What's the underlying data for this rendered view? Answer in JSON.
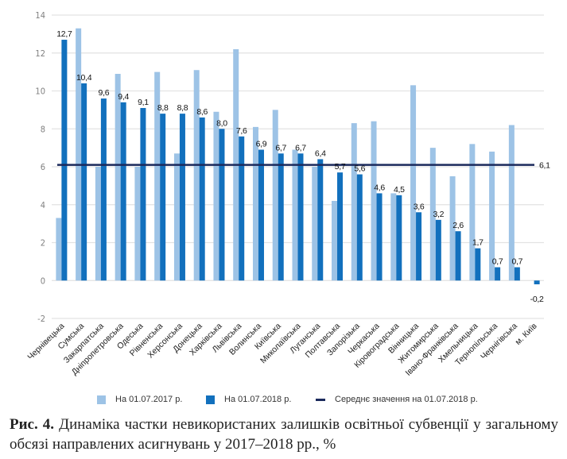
{
  "chart_data": {
    "type": "bar",
    "title": "",
    "xlabel": "",
    "ylabel": "",
    "ylim": [
      -2,
      14
    ],
    "yticks": [
      -2,
      0,
      2,
      4,
      6,
      8,
      10,
      12,
      14
    ],
    "grid": true,
    "legend_position": "bottom",
    "categories": [
      "Чернівецька",
      "Сумська",
      "Закарпатська",
      "Дніпропетровська",
      "Одеська",
      "Рівненська",
      "Херсонська",
      "Донецька",
      "Харківська",
      "Львівська",
      "Волинська",
      "Київська",
      "Миколаївська",
      "Луганська",
      "Полтавська",
      "Запорізька",
      "Черкаська",
      "Кіровоградська",
      "Вінницька",
      "Житомирська",
      "Івано-Франківська",
      "Хмельницька",
      "Тернопільська",
      "Чернігівська",
      "м. Київ"
    ],
    "series": [
      {
        "name": "На 01.07.2017 р.",
        "color": "#9dc3e6",
        "labeled": false,
        "values": [
          3.3,
          13.3,
          6.0,
          10.9,
          6.0,
          11.0,
          6.7,
          11.1,
          8.9,
          12.2,
          8.1,
          9.0,
          6.9,
          6.0,
          4.2,
          8.3,
          8.4,
          4.6,
          10.3,
          7.0,
          5.5,
          7.2,
          6.8,
          8.2,
          0
        ]
      },
      {
        "name": "На 01.07.2018 р.",
        "color": "#1270bd",
        "labeled": true,
        "values": [
          12.7,
          10.4,
          9.6,
          9.4,
          9.1,
          8.8,
          8.8,
          8.6,
          8.0,
          7.6,
          6.9,
          6.7,
          6.7,
          6.4,
          5.7,
          5.6,
          4.6,
          4.5,
          3.6,
          3.2,
          2.6,
          1.7,
          0.7,
          0.7,
          -0.2
        ]
      }
    ],
    "reference_line": {
      "name": "Середнє значення на 01.07.2018 р.",
      "value": 6.1,
      "label": "6,1",
      "color": "#1b2a5c"
    },
    "data_labels": [
      "12,7",
      "10,4",
      "9,6",
      "9,4",
      "9,1",
      "8,8",
      "8,8",
      "8,6",
      "8,0",
      "7,6",
      "6,9",
      "6,7",
      "6,7",
      "6,4",
      "5,7",
      "5,6",
      "4,6",
      "4,5",
      "3,6",
      "3,2",
      "2,6",
      "1,7",
      "0,7",
      "0,7",
      "-0,2"
    ]
  },
  "legend": {
    "items": [
      {
        "label": "На 01.07.2017 р.",
        "color": "#9dc3e6"
      },
      {
        "label": "На 01.07.2018 р.",
        "color": "#1270bd"
      },
      {
        "label": "Середнє значення на 01.07.2018 р.",
        "color": "#1b2a5c"
      }
    ]
  },
  "caption": {
    "prefix": "Рис. 4.",
    "text": "Динаміка частки невикористаних залишків освітньої субвенції у загальному обсязі направлених асигнувань у 2017–2018 рр., %"
  }
}
